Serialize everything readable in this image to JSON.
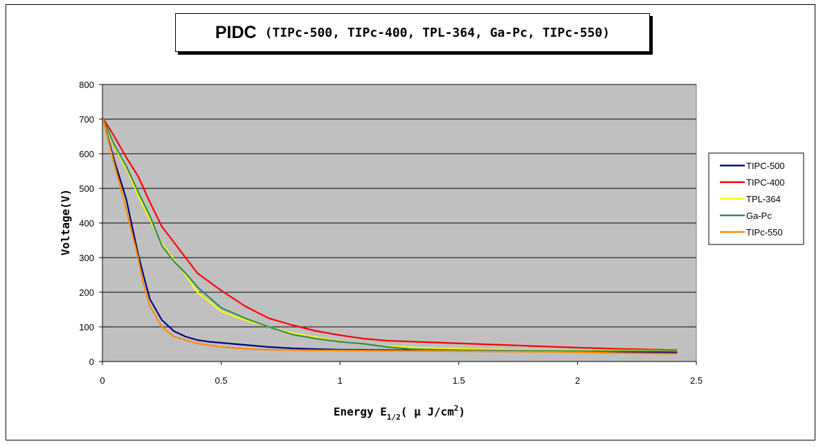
{
  "chart_data": {
    "type": "line",
    "title": "PIDC",
    "subtitle": "(TIPc-500, TIPc-400, TPL-364, Ga-Pc, TIPc-550)",
    "xlabel_main": "Energy E",
    "xlabel_sub": "1/2",
    "xlabel_tail": "( μ J/cm",
    "xlabel_sup": "2",
    "xlabel_close": ")",
    "ylabel": "Voltage(V)",
    "xlim": [
      0,
      2.5
    ],
    "ylim": [
      0,
      800
    ],
    "xticks": [
      "0",
      "0.5",
      "1",
      "1.5",
      "2",
      "2.5"
    ],
    "yticks": [
      "0",
      "100",
      "200",
      "300",
      "400",
      "500",
      "600",
      "700",
      "800"
    ],
    "grid": true,
    "plot_background": "#c0c0c0",
    "legend_position": "right",
    "series": [
      {
        "name": "TIPC-500",
        "color": "#000080",
        "points": [
          [
            0,
            705
          ],
          [
            0.05,
            580
          ],
          [
            0.1,
            470
          ],
          [
            0.15,
            310
          ],
          [
            0.18,
            230
          ],
          [
            0.2,
            180
          ],
          [
            0.25,
            120
          ],
          [
            0.3,
            88
          ],
          [
            0.35,
            72
          ],
          [
            0.4,
            62
          ],
          [
            0.45,
            57
          ],
          [
            0.5,
            54
          ],
          [
            0.6,
            48
          ],
          [
            0.7,
            42
          ],
          [
            0.8,
            38
          ],
          [
            1.0,
            34
          ],
          [
            1.2,
            33
          ],
          [
            1.5,
            32
          ],
          [
            2.0,
            30
          ],
          [
            2.42,
            25
          ]
        ]
      },
      {
        "name": "TIPC-400",
        "color": "#ff0000",
        "points": [
          [
            0,
            705
          ],
          [
            0.05,
            650
          ],
          [
            0.1,
            590
          ],
          [
            0.15,
            535
          ],
          [
            0.2,
            460
          ],
          [
            0.25,
            390
          ],
          [
            0.3,
            345
          ],
          [
            0.35,
            300
          ],
          [
            0.4,
            255
          ],
          [
            0.5,
            205
          ],
          [
            0.6,
            160
          ],
          [
            0.7,
            125
          ],
          [
            0.8,
            105
          ],
          [
            0.9,
            88
          ],
          [
            1.0,
            76
          ],
          [
            1.1,
            66
          ],
          [
            1.2,
            60
          ],
          [
            1.4,
            55
          ],
          [
            1.6,
            50
          ],
          [
            1.8,
            45
          ],
          [
            2.0,
            40
          ],
          [
            2.2,
            36
          ],
          [
            2.42,
            33
          ]
        ]
      },
      {
        "name": "TPL-364",
        "color": "#ffff00",
        "points": [
          [
            0,
            705
          ],
          [
            0.05,
            620
          ],
          [
            0.1,
            560
          ],
          [
            0.15,
            480
          ],
          [
            0.2,
            410
          ],
          [
            0.25,
            340
          ],
          [
            0.3,
            295
          ],
          [
            0.35,
            250
          ],
          [
            0.4,
            200
          ],
          [
            0.5,
            145
          ],
          [
            0.6,
            120
          ],
          [
            0.7,
            100
          ],
          [
            0.8,
            82
          ],
          [
            0.9,
            70
          ],
          [
            1.0,
            58
          ],
          [
            1.1,
            50
          ],
          [
            1.2,
            44
          ],
          [
            1.4,
            38
          ],
          [
            1.6,
            35
          ],
          [
            1.8,
            33
          ],
          [
            2.0,
            32
          ],
          [
            2.2,
            32
          ],
          [
            2.42,
            31
          ]
        ]
      },
      {
        "name": "Ga-Pc",
        "color": "#2e8b57",
        "points": [
          [
            0,
            705
          ],
          [
            0.05,
            625
          ],
          [
            0.1,
            565
          ],
          [
            0.15,
            490
          ],
          [
            0.2,
            420
          ],
          [
            0.25,
            335
          ],
          [
            0.3,
            290
          ],
          [
            0.35,
            255
          ],
          [
            0.4,
            215
          ],
          [
            0.5,
            155
          ],
          [
            0.6,
            125
          ],
          [
            0.7,
            100
          ],
          [
            0.8,
            78
          ],
          [
            0.9,
            66
          ],
          [
            1.0,
            57
          ],
          [
            1.1,
            51
          ],
          [
            1.2,
            42
          ],
          [
            1.3,
            36
          ],
          [
            1.5,
            33
          ],
          [
            1.8,
            31
          ],
          [
            2.1,
            30
          ],
          [
            2.42,
            30
          ]
        ]
      },
      {
        "name": "TIPc-550",
        "color": "#ff8c00",
        "points": [
          [
            0,
            705
          ],
          [
            0.05,
            570
          ],
          [
            0.1,
            440
          ],
          [
            0.15,
            300
          ],
          [
            0.17,
            230
          ],
          [
            0.2,
            160
          ],
          [
            0.25,
            100
          ],
          [
            0.3,
            72
          ],
          [
            0.35,
            62
          ],
          [
            0.4,
            52
          ],
          [
            0.5,
            42
          ],
          [
            0.6,
            37
          ],
          [
            0.7,
            34
          ],
          [
            0.8,
            33
          ],
          [
            1.0,
            32
          ],
          [
            1.2,
            31
          ],
          [
            1.5,
            30
          ],
          [
            2.0,
            27
          ],
          [
            2.2,
            24
          ],
          [
            2.42,
            22
          ]
        ]
      }
    ]
  }
}
